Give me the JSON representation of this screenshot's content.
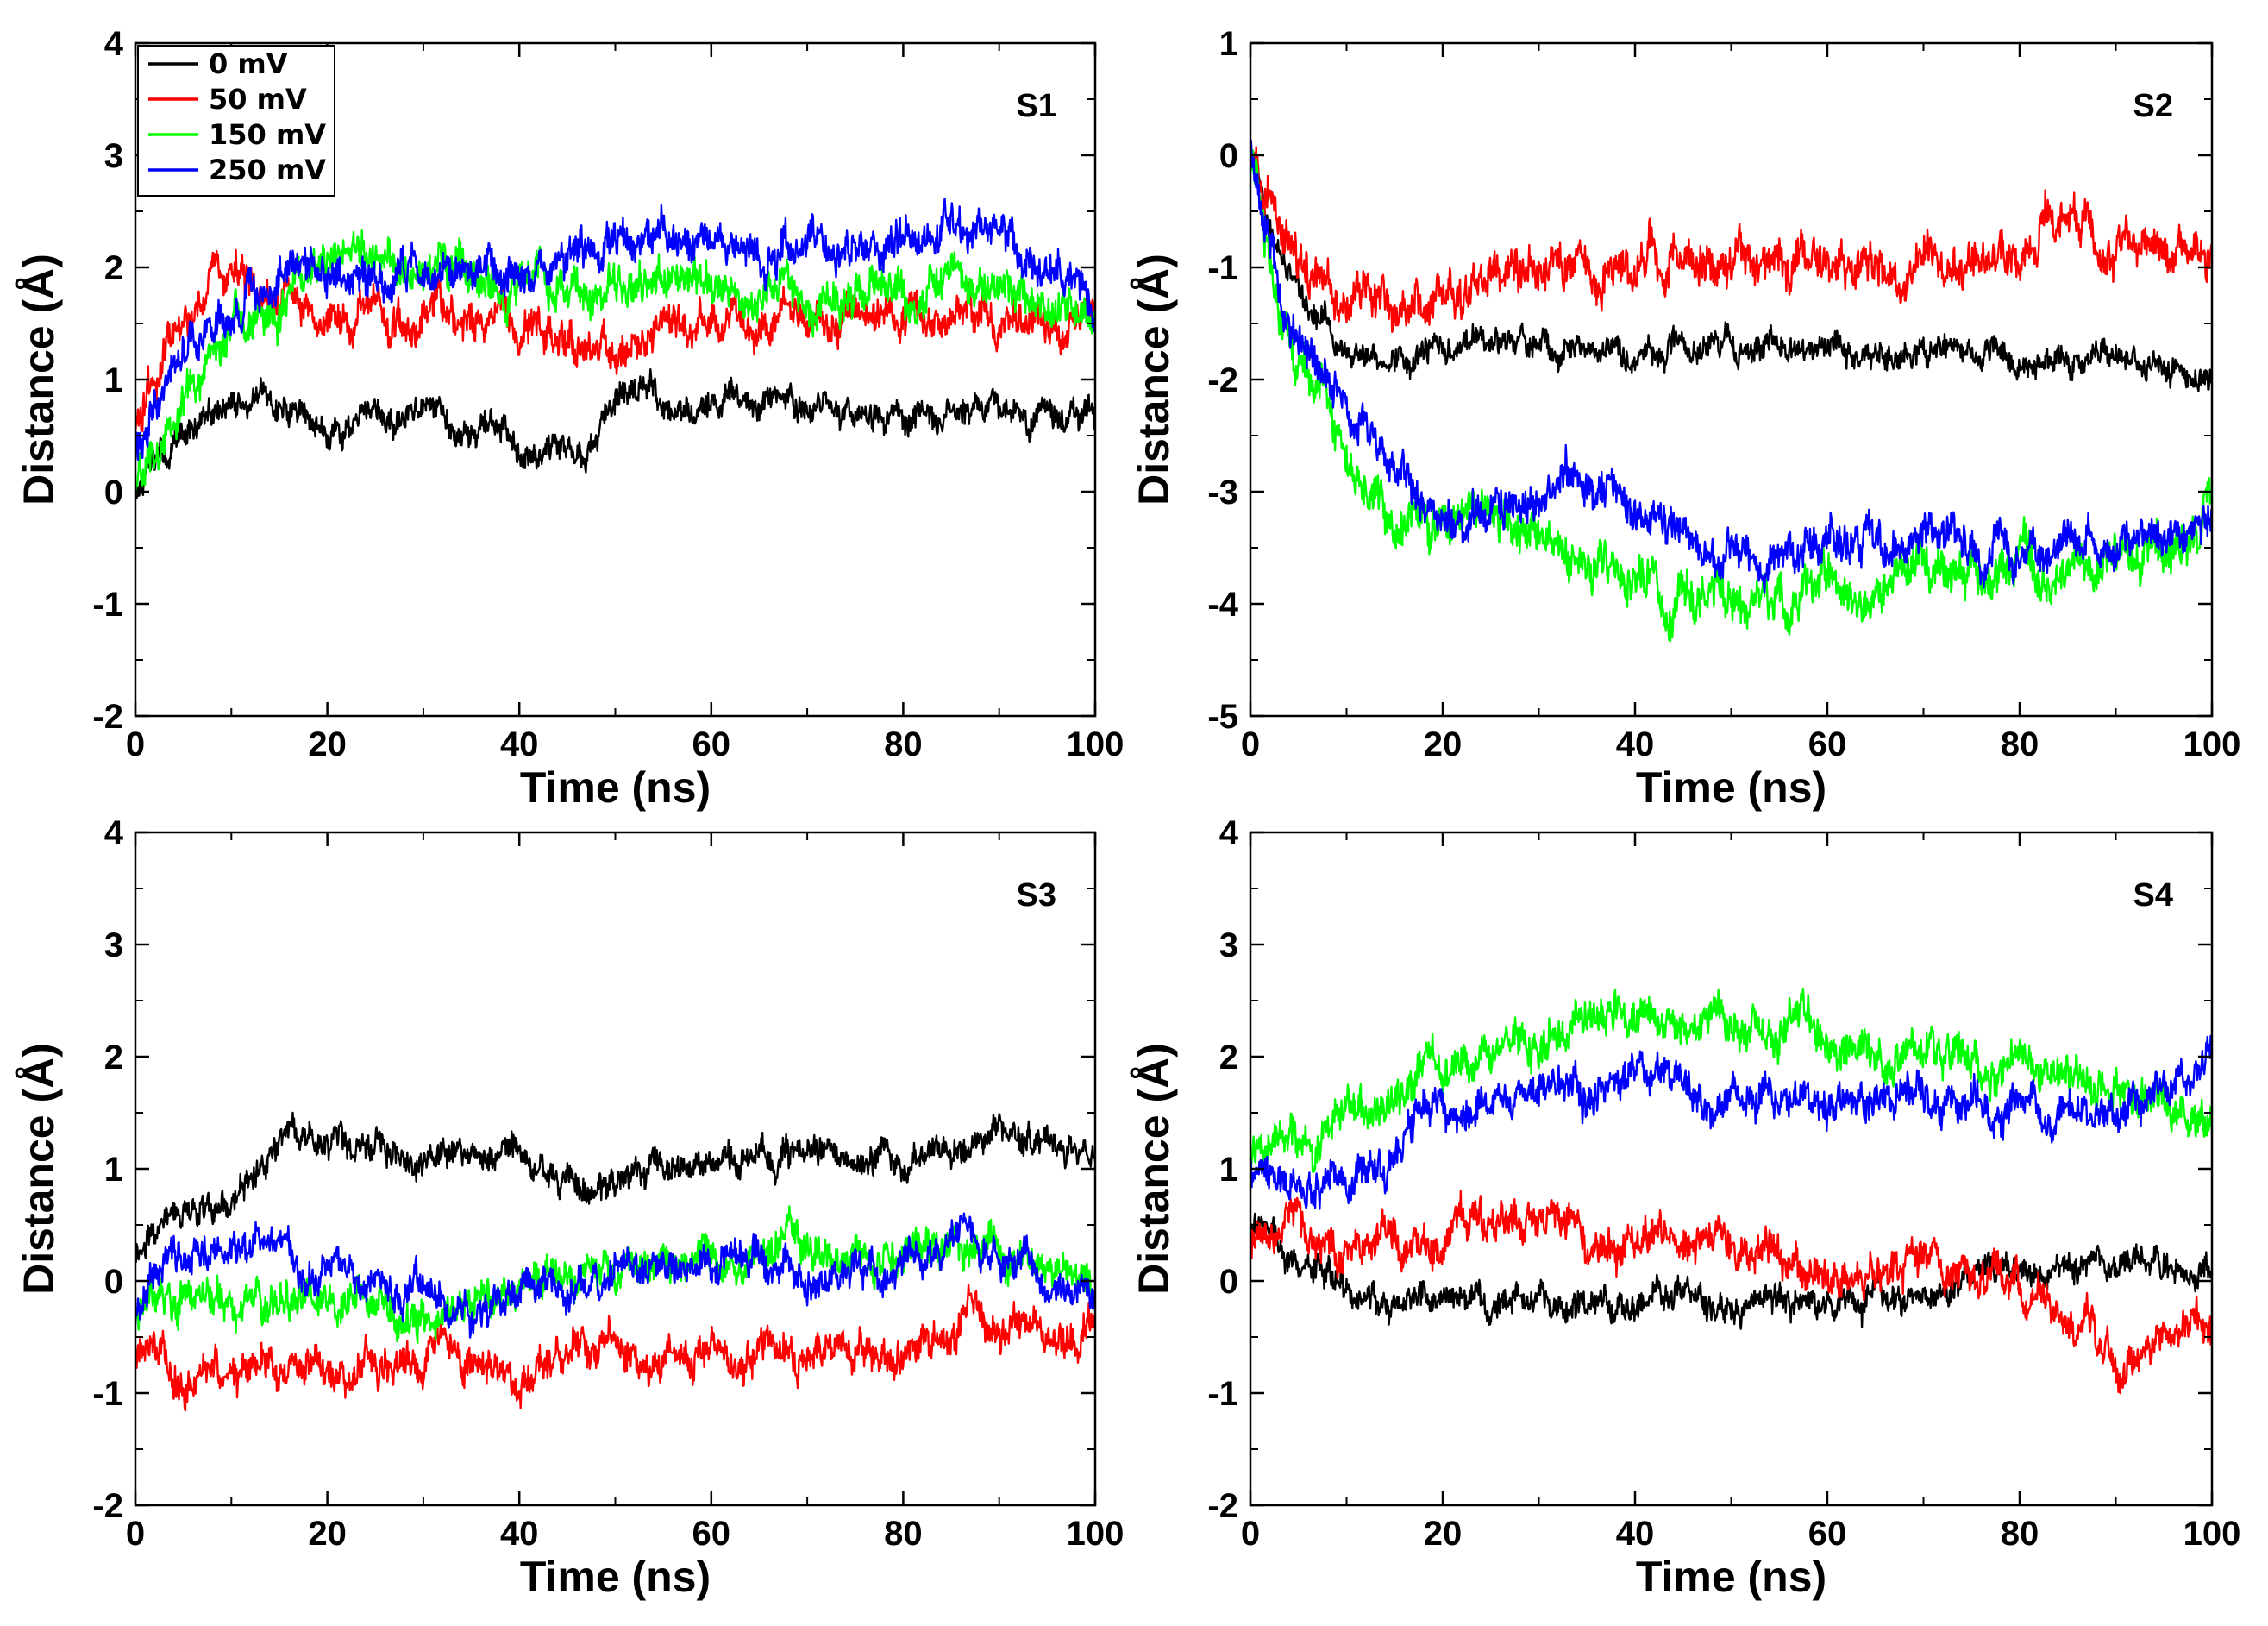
{
  "chart_data": [
    {
      "type": "line",
      "title": "",
      "panel_label": "S1",
      "xlabel": "Time (ns)",
      "ylabel": "Distance (Å)",
      "xlim": [
        0,
        100
      ],
      "ylim": [
        -2,
        4
      ],
      "xticks": [
        0,
        20,
        40,
        60,
        80,
        100
      ],
      "yticks": [
        -2,
        -1,
        0,
        1,
        2,
        3,
        4
      ],
      "grid": false,
      "legend": "top-left",
      "series": [
        {
          "name": "0 mV",
          "color": "#000000",
          "noise": 0.11,
          "x": [
            0,
            5,
            10,
            15,
            20,
            30,
            40,
            47,
            52,
            60,
            70,
            80,
            90,
            100
          ],
          "values": [
            0.0,
            0.5,
            0.75,
            0.8,
            0.55,
            0.65,
            0.5,
            0.35,
            0.85,
            0.75,
            0.75,
            0.7,
            0.65,
            0.75
          ]
        },
        {
          "name": "50 mV",
          "color": "#ff0000",
          "noise": 0.14,
          "x": [
            0,
            3,
            8,
            15,
            20,
            30,
            40,
            47,
            55,
            60,
            70,
            80,
            90,
            100
          ],
          "values": [
            0.6,
            1.2,
            2.0,
            1.7,
            1.6,
            1.5,
            1.45,
            1.2,
            1.5,
            1.5,
            1.55,
            1.6,
            1.55,
            1.45
          ]
        },
        {
          "name": "150 mV",
          "color": "#00ff00",
          "noise": 0.15,
          "x": [
            0,
            5,
            10,
            15,
            20,
            25,
            30,
            40,
            50,
            60,
            70,
            80,
            90,
            100
          ],
          "values": [
            0.1,
            0.8,
            1.6,
            1.7,
            2.0,
            2.1,
            1.9,
            1.85,
            1.8,
            1.85,
            1.8,
            1.7,
            1.8,
            1.6
          ]
        },
        {
          "name": "250 mV",
          "color": "#0000ff",
          "noise": 0.14,
          "x": [
            0,
            5,
            10,
            15,
            20,
            30,
            40,
            50,
            58,
            65,
            70,
            80,
            90,
            100
          ],
          "values": [
            0.3,
            1.4,
            1.5,
            1.8,
            1.9,
            1.95,
            2.0,
            2.2,
            2.3,
            2.05,
            2.25,
            2.2,
            2.25,
            1.7
          ]
        }
      ]
    },
    {
      "type": "line",
      "title": "",
      "panel_label": "S2",
      "xlabel": "Time (ns)",
      "ylabel": "Distance (Å)",
      "xlim": [
        0,
        100
      ],
      "ylim": [
        -5,
        1
      ],
      "xticks": [
        0,
        20,
        40,
        60,
        80,
        100
      ],
      "yticks": [
        -5,
        -4,
        -3,
        -2,
        -1,
        0,
        1
      ],
      "grid": false,
      "legend": "none",
      "series": [
        {
          "name": "0 mV",
          "color": "#000000",
          "noise": 0.1,
          "x": [
            0,
            3,
            6,
            10,
            15,
            20,
            30,
            40,
            50,
            60,
            70,
            80,
            90,
            100
          ],
          "values": [
            0.0,
            -0.9,
            -1.4,
            -1.7,
            -1.8,
            -1.75,
            -1.7,
            -1.75,
            -1.65,
            -1.75,
            -1.75,
            -1.85,
            -1.9,
            -1.95
          ]
        },
        {
          "name": "50 mV",
          "color": "#ff0000",
          "noise": 0.16,
          "x": [
            0,
            3,
            6,
            10,
            15,
            20,
            30,
            40,
            50,
            60,
            70,
            80,
            85,
            90,
            100
          ],
          "values": [
            0.0,
            -0.8,
            -1.1,
            -1.2,
            -1.35,
            -1.25,
            -1.0,
            -0.95,
            -0.9,
            -1.0,
            -1.0,
            -0.85,
            -0.55,
            -0.8,
            -0.8
          ]
        },
        {
          "name": "150 mV",
          "color": "#00ff00",
          "noise": 0.17,
          "x": [
            0,
            3,
            7,
            10,
            15,
            20,
            30,
            35,
            40,
            45,
            50,
            60,
            65,
            70,
            80,
            85,
            90,
            100
          ],
          "values": [
            0.0,
            -1.4,
            -2.1,
            -2.6,
            -3.2,
            -3.2,
            -3.4,
            -3.6,
            -3.8,
            -3.95,
            -3.95,
            -3.9,
            -4.0,
            -3.7,
            -3.6,
            -3.7,
            -3.7,
            -3.2
          ]
        },
        {
          "name": "250 mV",
          "color": "#0000ff",
          "noise": 0.15,
          "x": [
            0,
            3,
            7,
            10,
            15,
            20,
            30,
            35,
            40,
            45,
            50,
            55,
            60,
            70,
            80,
            90,
            100
          ],
          "values": [
            0.0,
            -1.3,
            -2.0,
            -2.3,
            -2.8,
            -3.3,
            -3.0,
            -2.9,
            -3.2,
            -3.3,
            -3.65,
            -3.6,
            -3.45,
            -3.4,
            -3.45,
            -3.6,
            -3.3
          ]
        }
      ]
    },
    {
      "type": "line",
      "title": "",
      "panel_label": "S3",
      "xlabel": "Time (ns)",
      "ylabel": "Distance (Å)",
      "xlim": [
        0,
        100
      ],
      "ylim": [
        -2,
        4
      ],
      "xticks": [
        0,
        20,
        40,
        60,
        80,
        100
      ],
      "yticks": [
        -2,
        -1,
        0,
        1,
        2,
        3,
        4
      ],
      "grid": false,
      "legend": "none",
      "series": [
        {
          "name": "0 mV",
          "color": "#000000",
          "noise": 0.11,
          "x": [
            0,
            5,
            10,
            15,
            20,
            30,
            40,
            45,
            50,
            55,
            60,
            70,
            80,
            90,
            100
          ],
          "values": [
            0.3,
            0.65,
            0.7,
            1.2,
            1.25,
            1.15,
            1.2,
            0.85,
            0.9,
            0.95,
            1.05,
            1.15,
            1.1,
            1.25,
            1.15
          ]
        },
        {
          "name": "50 mV",
          "color": "#ff0000",
          "noise": 0.14,
          "x": [
            0,
            5,
            10,
            20,
            30,
            40,
            50,
            60,
            70,
            80,
            88,
            95,
            100
          ],
          "values": [
            -0.7,
            -0.8,
            -0.85,
            -0.85,
            -0.7,
            -0.75,
            -0.6,
            -0.65,
            -0.75,
            -0.6,
            -0.3,
            -0.5,
            -0.5
          ]
        },
        {
          "name": "150 mV",
          "color": "#00ff00",
          "noise": 0.14,
          "x": [
            0,
            5,
            10,
            20,
            30,
            40,
            50,
            60,
            70,
            80,
            90,
            95,
            100
          ],
          "values": [
            -0.3,
            0.0,
            -0.2,
            -0.2,
            -0.35,
            -0.1,
            0.1,
            0.15,
            0.2,
            0.2,
            0.35,
            0.1,
            0.05
          ]
        },
        {
          "name": "250 mV",
          "color": "#0000ff",
          "noise": 0.13,
          "x": [
            0,
            3,
            8,
            15,
            20,
            30,
            35,
            40,
            50,
            60,
            70,
            80,
            88,
            95,
            100
          ],
          "values": [
            -0.3,
            0.2,
            0.3,
            0.25,
            0.05,
            -0.15,
            -0.35,
            -0.15,
            0.05,
            0.1,
            0.05,
            0.05,
            0.3,
            0.0,
            -0.1
          ]
        }
      ]
    },
    {
      "type": "line",
      "title": "",
      "panel_label": "S4",
      "xlabel": "Time (ns)",
      "ylabel": "Distance (Å)",
      "xlim": [
        0,
        100
      ],
      "ylim": [
        -2,
        4
      ],
      "xticks": [
        0,
        20,
        40,
        60,
        80,
        100
      ],
      "yticks": [
        -2,
        -1,
        0,
        1,
        2,
        3,
        4
      ],
      "grid": false,
      "legend": "none",
      "series": [
        {
          "name": "0 mV",
          "color": "#000000",
          "noise": 0.11,
          "x": [
            0,
            5,
            10,
            15,
            20,
            30,
            40,
            45,
            50,
            55,
            60,
            70,
            80,
            90,
            100
          ],
          "values": [
            0.5,
            0.1,
            -0.1,
            -0.2,
            -0.15,
            -0.2,
            -0.2,
            -0.1,
            -0.35,
            -0.2,
            -0.2,
            -0.15,
            0.05,
            0.1,
            0.1
          ]
        },
        {
          "name": "50 mV",
          "color": "#ff0000",
          "noise": 0.14,
          "x": [
            0,
            5,
            10,
            15,
            20,
            25,
            30,
            35,
            40,
            50,
            60,
            70,
            80,
            85,
            90,
            95,
            100
          ],
          "values": [
            0.4,
            0.35,
            0.3,
            0.35,
            0.3,
            0.5,
            0.55,
            0.35,
            0.25,
            0.3,
            0.0,
            0.2,
            0.0,
            -0.3,
            -0.75,
            -0.4,
            -0.45
          ]
        },
        {
          "name": "150 mV",
          "color": "#00ff00",
          "noise": 0.15,
          "x": [
            0,
            5,
            10,
            17,
            20,
            30,
            35,
            40,
            50,
            58,
            60,
            70,
            80,
            90,
            95,
            100
          ],
          "values": [
            1.0,
            1.2,
            1.5,
            1.75,
            1.9,
            2.05,
            2.35,
            2.3,
            2.25,
            2.4,
            2.1,
            2.0,
            1.95,
            1.7,
            1.6,
            1.45
          ]
        },
        {
          "name": "250 mV",
          "color": "#0000ff",
          "noise": 0.14,
          "x": [
            0,
            5,
            10,
            15,
            17,
            20,
            30,
            40,
            50,
            60,
            70,
            80,
            90,
            95,
            100
          ],
          "values": [
            1.0,
            0.8,
            0.9,
            1.0,
            1.4,
            1.55,
            1.65,
            1.85,
            1.55,
            1.6,
            1.65,
            1.55,
            1.45,
            1.85,
            1.95
          ]
        }
      ]
    }
  ]
}
